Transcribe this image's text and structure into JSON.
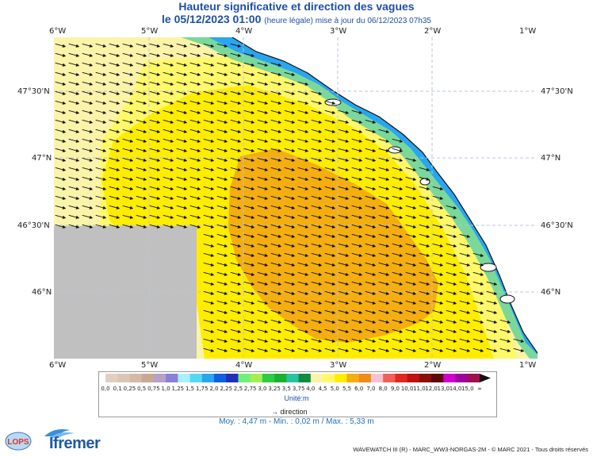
{
  "header": {
    "title": "Hauteur significative et direction des vagues",
    "date_line": "le 05/12/2023 01:00",
    "update_note": "(heure légale) mise à jour du 06/12/2023 07h35"
  },
  "map": {
    "lon_ticks": [
      "6°W",
      "5°W",
      "4°W",
      "3°W",
      "2°W",
      "1°W"
    ],
    "lat_ticks_left": [
      "47°30'N",
      "47°N",
      "46°30'N",
      "46°N"
    ],
    "lat_ticks_right": [
      "47°30'N",
      "47°N",
      "46°30'N",
      "46°N"
    ],
    "colors": {
      "no_data": "#c0c0c0",
      "band_pale": "#fbf3a8",
      "band_yellow1": "#fff86a",
      "band_yellow2": "#ffed00",
      "band_orange": "#f5ae10",
      "grid": "#b8c4dc",
      "arrow": "#111111"
    },
    "arrow_direction_deg": 15
  },
  "legend": {
    "labels": [
      "0,0",
      "0,1",
      "0,25",
      "0,5",
      "0,75",
      "1,0",
      "1,25",
      "1,5",
      "1,75",
      "2,0",
      "2,25",
      "2,5",
      "2,75",
      "3,0",
      "3,25",
      "3,5",
      "3,75",
      "4,0",
      "4,5",
      "5,0",
      "5,5",
      "6,0",
      "7,0",
      "8,0",
      "9,0",
      "10,0",
      "11,0",
      "12,0",
      "13,0",
      "14,0",
      "15,0",
      "∞"
    ],
    "colors": [
      "#e3cfc0",
      "#d9c7b6",
      "#d3b9a6",
      "#c9a892",
      "#b6a0c8",
      "#8a7fd6",
      "#a8f0ff",
      "#58d8f0",
      "#2aa6f0",
      "#1060e0",
      "#2030b8",
      "#6ef07a",
      "#a2ee54",
      "#2ecc44",
      "#1cb030",
      "#28c4a0",
      "#108c40",
      "#fbf3a8",
      "#fff86a",
      "#ffed00",
      "#f5ae10",
      "#f08a18",
      "#f4c3d0",
      "#f06058",
      "#e02820",
      "#c01010",
      "#8a1008",
      "#600808",
      "#d000d0",
      "#a000a0",
      "#a01050"
    ],
    "unit": "Unité:m",
    "direction_label": "direction",
    "stats": "Moy. : 4,47 m   -   Min. : 0,02 m / Max. : 5,33 m"
  },
  "footer": {
    "credit": "WAVEWATCH III (R) - MARC_WW3-NORGAS-2M - © MARC 2021 - Tous droits réservés",
    "logo_lops": "LOPS",
    "logo_ifremer": "Ifremer"
  }
}
